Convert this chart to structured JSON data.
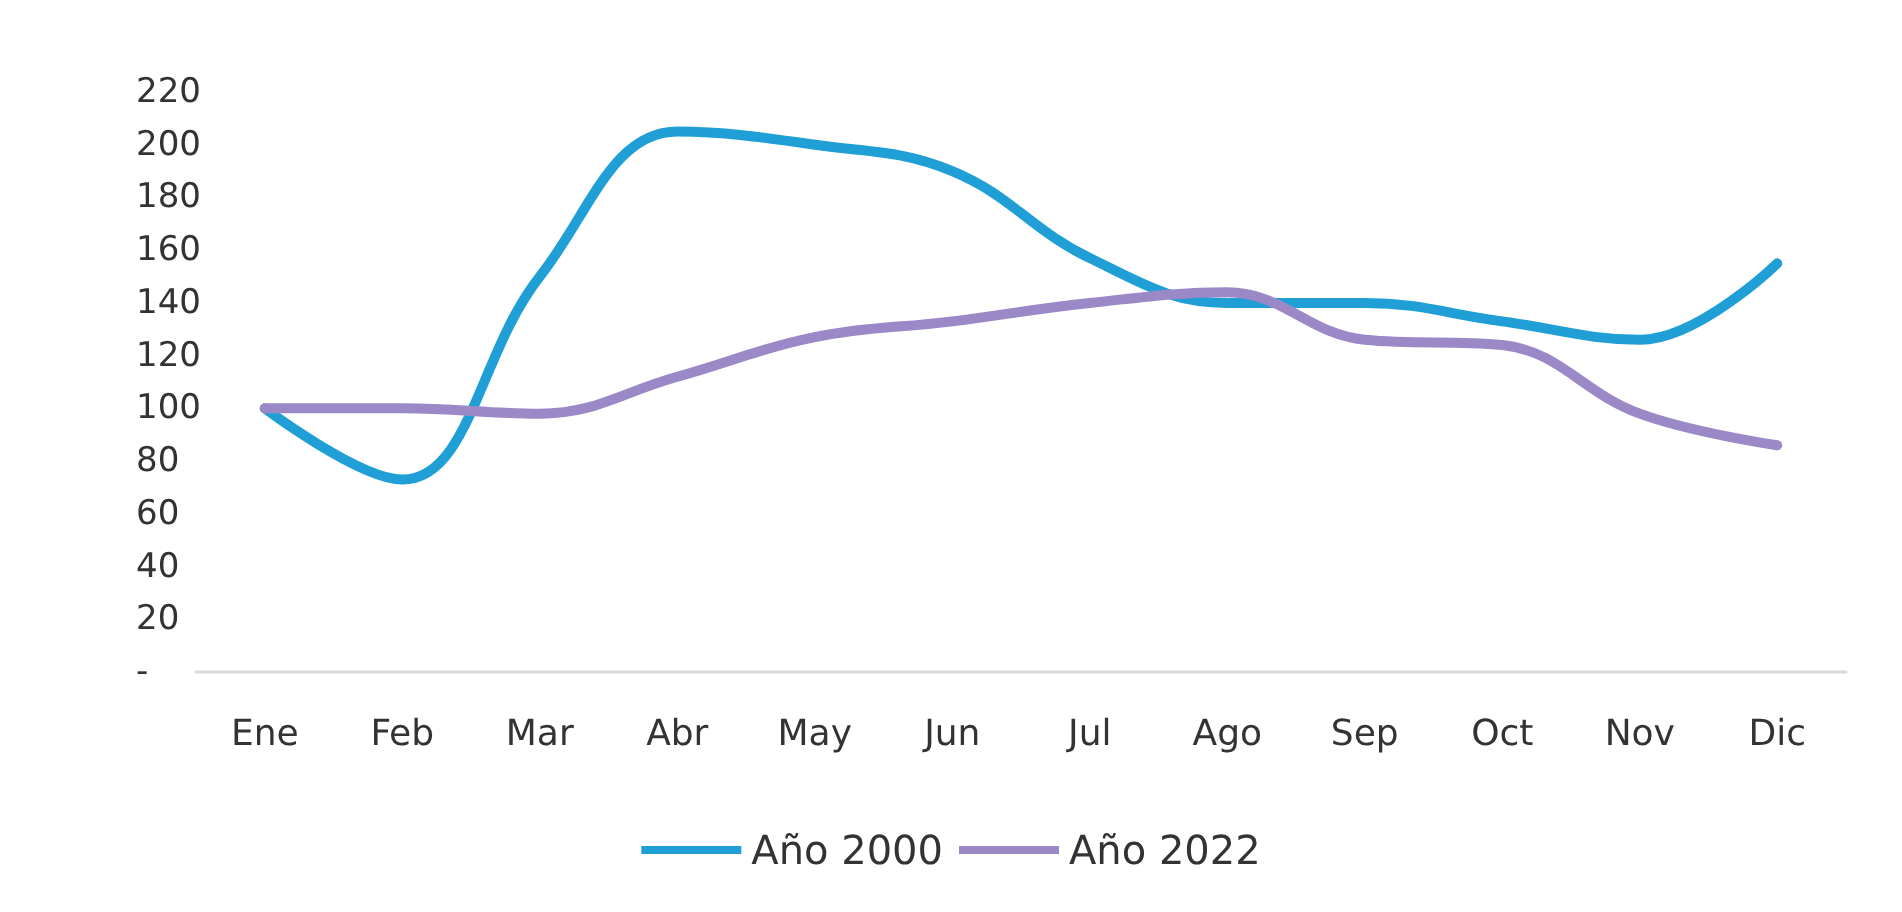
{
  "chart_data": {
    "type": "line",
    "categories": [
      "Ene",
      "Feb",
      "Mar",
      "Abr",
      "May",
      "Jun",
      "Jul",
      "Ago",
      "Sep",
      "Oct",
      "Nov",
      "Dic"
    ],
    "series": [
      {
        "name": "Año 2000",
        "color": "#1f9fd5",
        "values": [
          100,
          73,
          150,
          205,
          200,
          190,
          157,
          140,
          140,
          133,
          126,
          155
        ]
      },
      {
        "name": "Año 2022",
        "color": "#9b88c6",
        "values": [
          100,
          100,
          98,
          112,
          127,
          133,
          140,
          144,
          126,
          124,
          98,
          86
        ]
      }
    ],
    "ylim": [
      0,
      220
    ],
    "yticks": [
      {
        "value": 0,
        "label": "-"
      },
      20,
      40,
      60,
      80,
      100,
      120,
      140,
      160,
      180,
      200,
      220
    ],
    "grid": false,
    "legend": "bottom",
    "marker": "none",
    "line_style": "solid"
  }
}
